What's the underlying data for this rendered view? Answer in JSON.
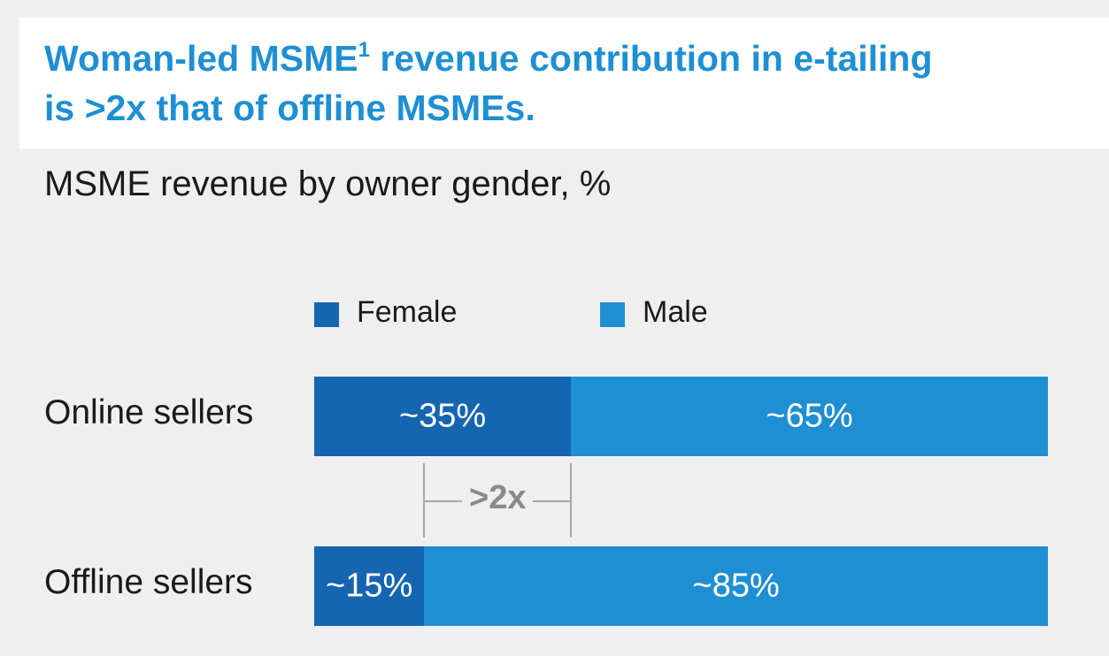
{
  "header": {
    "title_line1_pre": "Woman-led MSME",
    "title_sup": "1",
    "title_line1_post": " revenue contribution in e-tailing",
    "title_line2": "is >2x that of offline MSMEs.",
    "subtitle": "MSME revenue by owner gender, %"
  },
  "chart_data": {
    "type": "bar",
    "orientation": "horizontal",
    "stacked": true,
    "categories": [
      "Online sellers",
      "Offline sellers"
    ],
    "series": [
      {
        "name": "Female",
        "color": "#1565b0",
        "values": [
          35,
          15
        ],
        "labels": [
          "~35%",
          "~15%"
        ]
      },
      {
        "name": "Male",
        "color": "#1f8fd3",
        "values": [
          65,
          85
        ],
        "labels": [
          "~65%",
          "~85%"
        ]
      }
    ],
    "xlim": [
      0,
      100
    ],
    "legend": "top",
    "annotation": ">2x"
  }
}
